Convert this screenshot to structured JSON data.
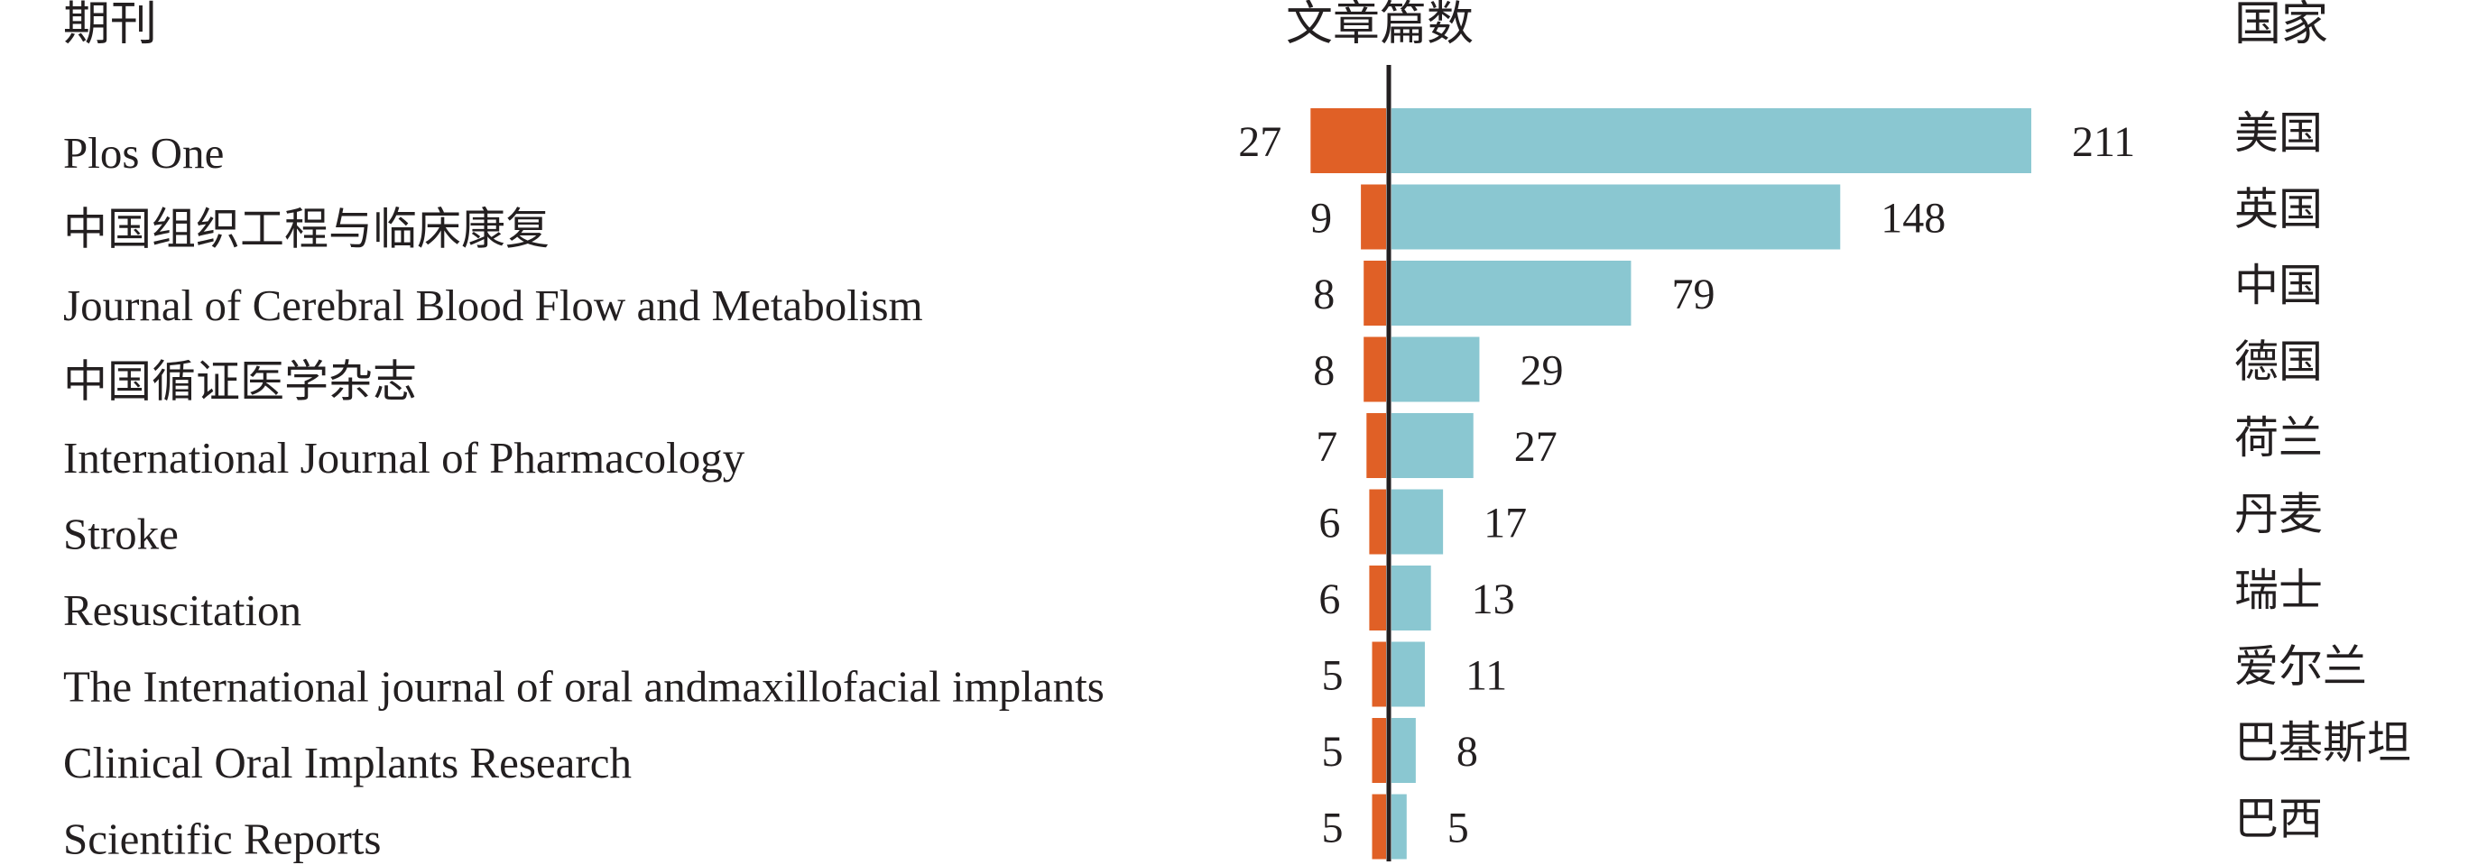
{
  "chart_data": {
    "type": "bar",
    "headers": {
      "journal": "期刊",
      "count": "文章篇数",
      "country": "国家"
    },
    "journals": [
      "Plos One",
      "中国组织工程与临床康复",
      "Journal of Cerebral Blood Flow and Metabolism",
      "中国循证医学杂志",
      "International Journal of Pharmacology",
      "Stroke",
      "Resuscitation",
      "The International journal of oral andmaxillofacial implants",
      "Clinical Oral Implants Research",
      "Scientific Reports"
    ],
    "journal_counts": [
      27,
      9,
      8,
      8,
      7,
      6,
      6,
      5,
      5,
      5
    ],
    "countries": [
      "美国",
      "英国",
      "中国",
      "德国",
      "荷兰",
      "丹麦",
      "瑞士",
      "爱尔兰",
      "巴基斯坦",
      "巴西"
    ],
    "country_counts": [
      211,
      148,
      79,
      29,
      27,
      17,
      13,
      11,
      8,
      5
    ],
    "colors": {
      "journal_bar": "#e06026",
      "country_bar": "#8ac7d1",
      "axis": "#231f20"
    }
  }
}
